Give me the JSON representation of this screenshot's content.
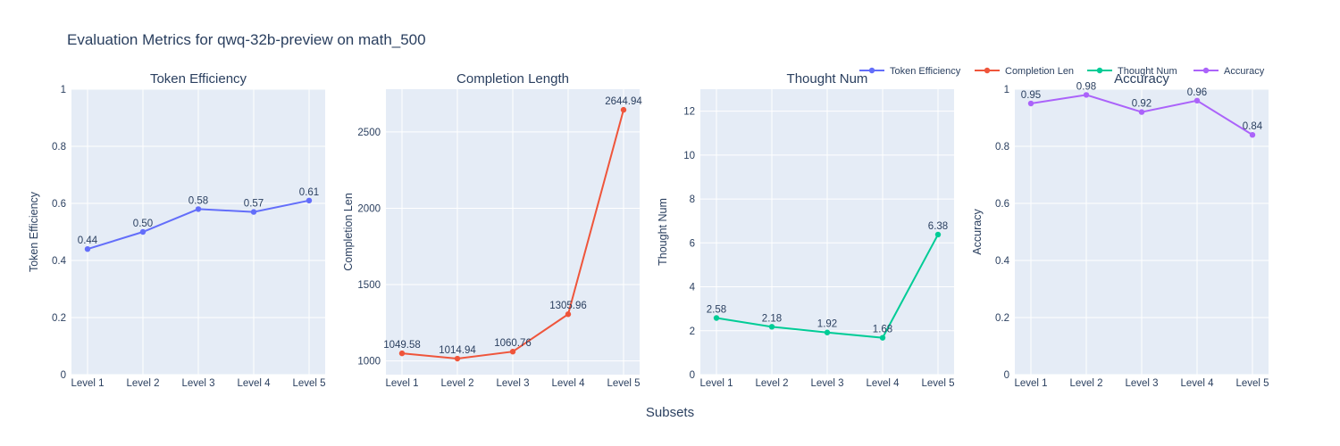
{
  "title": "Evaluation Metrics for qwq-32b-preview on math_500",
  "shared_xlabel": "Subsets",
  "legend": {
    "placement": "top-right",
    "items": [
      {
        "label": "Token Efficiency",
        "color": "#636efa"
      },
      {
        "label": "Completion Len",
        "color": "#ef553b"
      },
      {
        "label": "Thought Num",
        "color": "#00cc96"
      },
      {
        "label": "Accuracy",
        "color": "#ab63fa"
      }
    ]
  },
  "chart_data": [
    {
      "type": "line",
      "title": "Token Efficiency",
      "xlabel": "",
      "ylabel": "Token Efficiency",
      "categories": [
        "Level 1",
        "Level 2",
        "Level 3",
        "Level 4",
        "Level 5"
      ],
      "series": [
        {
          "name": "Token Efficiency",
          "color": "#636efa",
          "values": [
            0.44,
            0.5,
            0.58,
            0.57,
            0.61
          ],
          "labels": [
            "0.44",
            "0.50",
            "0.58",
            "0.57",
            "0.61"
          ]
        }
      ],
      "ylim": [
        0,
        1
      ],
      "yticks": [
        0,
        0.2,
        0.4,
        0.6,
        0.8,
        1
      ],
      "ytick_labels": [
        "0",
        "0.2",
        "0.4",
        "0.6",
        "0.8",
        "1"
      ],
      "grid": true
    },
    {
      "type": "line",
      "title": "Completion Length",
      "xlabel": "",
      "ylabel": "Completion Len",
      "categories": [
        "Level 1",
        "Level 2",
        "Level 3",
        "Level 4",
        "Level 5"
      ],
      "series": [
        {
          "name": "Completion Len",
          "color": "#ef553b",
          "values": [
            1049.58,
            1014.94,
            1060.76,
            1305.96,
            2644.94
          ],
          "labels": [
            "1049.58",
            "1014.94",
            "1060.76",
            "1305.96",
            "2644.94"
          ]
        }
      ],
      "ylim": [
        910,
        2780
      ],
      "yticks": [
        1000,
        1500,
        2000,
        2500
      ],
      "ytick_labels": [
        "1000",
        "1500",
        "2000",
        "2500"
      ],
      "grid": true
    },
    {
      "type": "line",
      "title": "Thought Num",
      "xlabel": "",
      "ylabel": "Thought Num",
      "categories": [
        "Level 1",
        "Level 2",
        "Level 3",
        "Level 4",
        "Level 5"
      ],
      "series": [
        {
          "name": "Thought Num",
          "color": "#00cc96",
          "values": [
            2.58,
            2.18,
            1.92,
            1.68,
            6.38
          ],
          "labels": [
            "2.58",
            "2.18",
            "1.92",
            "1.68",
            "6.38"
          ]
        }
      ],
      "ylim": [
        0,
        13
      ],
      "yticks": [
        0,
        2,
        4,
        6,
        8,
        10,
        12
      ],
      "ytick_labels": [
        "0",
        "2",
        "4",
        "6",
        "8",
        "10",
        "12"
      ],
      "grid": true
    },
    {
      "type": "line",
      "title": "Accuracy",
      "xlabel": "",
      "ylabel": "Accuracy",
      "categories": [
        "Level 1",
        "Level 2",
        "Level 3",
        "Level 4",
        "Level 5"
      ],
      "series": [
        {
          "name": "Accuracy",
          "color": "#ab63fa",
          "values": [
            0.95,
            0.98,
            0.92,
            0.96,
            0.84
          ],
          "labels": [
            "0.95",
            "0.98",
            "0.92",
            "0.96",
            "0.84"
          ]
        }
      ],
      "ylim": [
        0,
        1
      ],
      "yticks": [
        0,
        0.2,
        0.4,
        0.6,
        0.8,
        1
      ],
      "ytick_labels": [
        "0",
        "0.2",
        "0.4",
        "0.6",
        "0.8",
        "1"
      ],
      "grid": true
    }
  ]
}
